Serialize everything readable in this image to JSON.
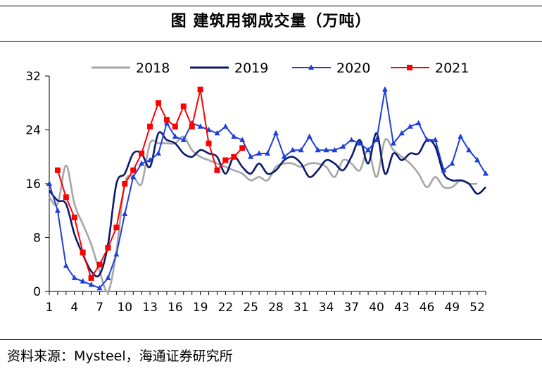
{
  "header": {
    "title": "图  建筑用钢成交量（万吨）"
  },
  "footer": {
    "source": "资料来源：Mysteel，海通证券研究所"
  },
  "chart_data": {
    "type": "line",
    "title": "图  建筑用钢成交量（万吨）",
    "xlabel": "",
    "ylabel": "",
    "xlim": [
      1,
      53
    ],
    "ylim": [
      0,
      32
    ],
    "yticks": [
      0,
      8,
      16,
      24,
      32
    ],
    "xticks": [
      1,
      4,
      7,
      10,
      13,
      16,
      19,
      22,
      25,
      28,
      31,
      34,
      37,
      40,
      43,
      46,
      49,
      52
    ],
    "grid": false,
    "legend": "top",
    "series": [
      {
        "name": "2018",
        "color": "#a6a6a6",
        "marker": "none",
        "x": [
          1,
          2,
          3,
          4,
          5,
          6,
          7,
          8,
          9,
          10,
          11,
          12,
          13,
          14,
          15,
          16,
          17,
          18,
          19,
          20,
          21,
          22,
          23,
          24,
          25,
          26,
          27,
          28,
          29,
          30,
          31,
          32,
          33,
          34,
          35,
          36,
          37,
          38,
          39,
          40,
          41,
          42,
          43,
          44,
          45,
          46,
          47,
          48,
          49,
          50,
          51,
          52
        ],
        "values": [
          14,
          13,
          18.7,
          13,
          10,
          7,
          3,
          0,
          6,
          16,
          17,
          16,
          22,
          22,
          22,
          22,
          23,
          21,
          20,
          19.5,
          19,
          18.5,
          18,
          17.5,
          16.5,
          17,
          16.5,
          18.5,
          19,
          19,
          18.5,
          19,
          19,
          18.5,
          17,
          19.5,
          19,
          18,
          21,
          17,
          22.5,
          21,
          20,
          19,
          17.5,
          15.5,
          17,
          15.5,
          15.5,
          16.5,
          16,
          16
        ]
      },
      {
        "name": "2019",
        "color": "#0d1a6b",
        "marker": "none",
        "x": [
          1,
          2,
          3,
          4,
          5,
          6,
          7,
          8,
          9,
          10,
          11,
          12,
          13,
          14,
          15,
          16,
          17,
          18,
          19,
          20,
          21,
          22,
          23,
          24,
          25,
          26,
          27,
          28,
          29,
          30,
          31,
          32,
          33,
          34,
          35,
          36,
          37,
          38,
          39,
          40,
          41,
          42,
          43,
          44,
          45,
          46,
          47,
          48,
          49,
          50,
          51,
          52,
          53
        ],
        "values": [
          15,
          13.5,
          13,
          8.5,
          5.5,
          3,
          2.5,
          7,
          16,
          17.5,
          20.5,
          20.5,
          18.5,
          23.5,
          22.5,
          22,
          20.5,
          20,
          21,
          20.5,
          20,
          17.5,
          20,
          18.5,
          17.5,
          19,
          17.5,
          18,
          19.5,
          20,
          19,
          17,
          18,
          19.5,
          19,
          18,
          20,
          22.5,
          19,
          23.5,
          17.5,
          20.5,
          19.5,
          20.5,
          20.5,
          22.5,
          21.5,
          17.5,
          16.5,
          16.5,
          16,
          14.5,
          15.5
        ]
      },
      {
        "name": "2020",
        "color": "#1f3fdc",
        "marker": "triangle",
        "x": [
          1,
          2,
          3,
          4,
          5,
          6,
          7,
          8,
          9,
          10,
          11,
          12,
          13,
          14,
          15,
          16,
          17,
          18,
          19,
          20,
          21,
          22,
          23,
          24,
          25,
          26,
          27,
          28,
          29,
          30,
          31,
          32,
          33,
          34,
          35,
          36,
          37,
          38,
          39,
          40,
          41,
          42,
          43,
          44,
          45,
          46,
          47,
          48,
          49,
          50,
          51,
          52,
          53
        ],
        "values": [
          16,
          12,
          3.8,
          2,
          1.5,
          1,
          0.5,
          2,
          5.5,
          11.5,
          17,
          19,
          19.5,
          20.5,
          25,
          23,
          22.5,
          25,
          24.5,
          24,
          23.5,
          24.5,
          23,
          22.5,
          20,
          20.5,
          20.5,
          23.5,
          20,
          21,
          21,
          23,
          21,
          21,
          21,
          21.5,
          22.5,
          22,
          21,
          22.5,
          30,
          22,
          23.5,
          24.5,
          25,
          22.5,
          22.5,
          18,
          19,
          23,
          21,
          19.5,
          17.5
        ]
      },
      {
        "name": "2021",
        "color": "#ff0000",
        "marker": "square",
        "x": [
          2,
          3,
          4,
          5,
          6,
          7,
          8,
          9,
          10,
          11,
          12,
          13,
          14,
          15,
          16,
          17,
          18,
          19,
          20,
          21,
          22,
          23,
          24
        ],
        "values": [
          18,
          14,
          11,
          5.8,
          2,
          4,
          6.5,
          9.5,
          16,
          18,
          20.5,
          24.5,
          28,
          25.5,
          24.5,
          27.5,
          24.5,
          30,
          22,
          18,
          19.5,
          20,
          21.3
        ]
      }
    ]
  }
}
